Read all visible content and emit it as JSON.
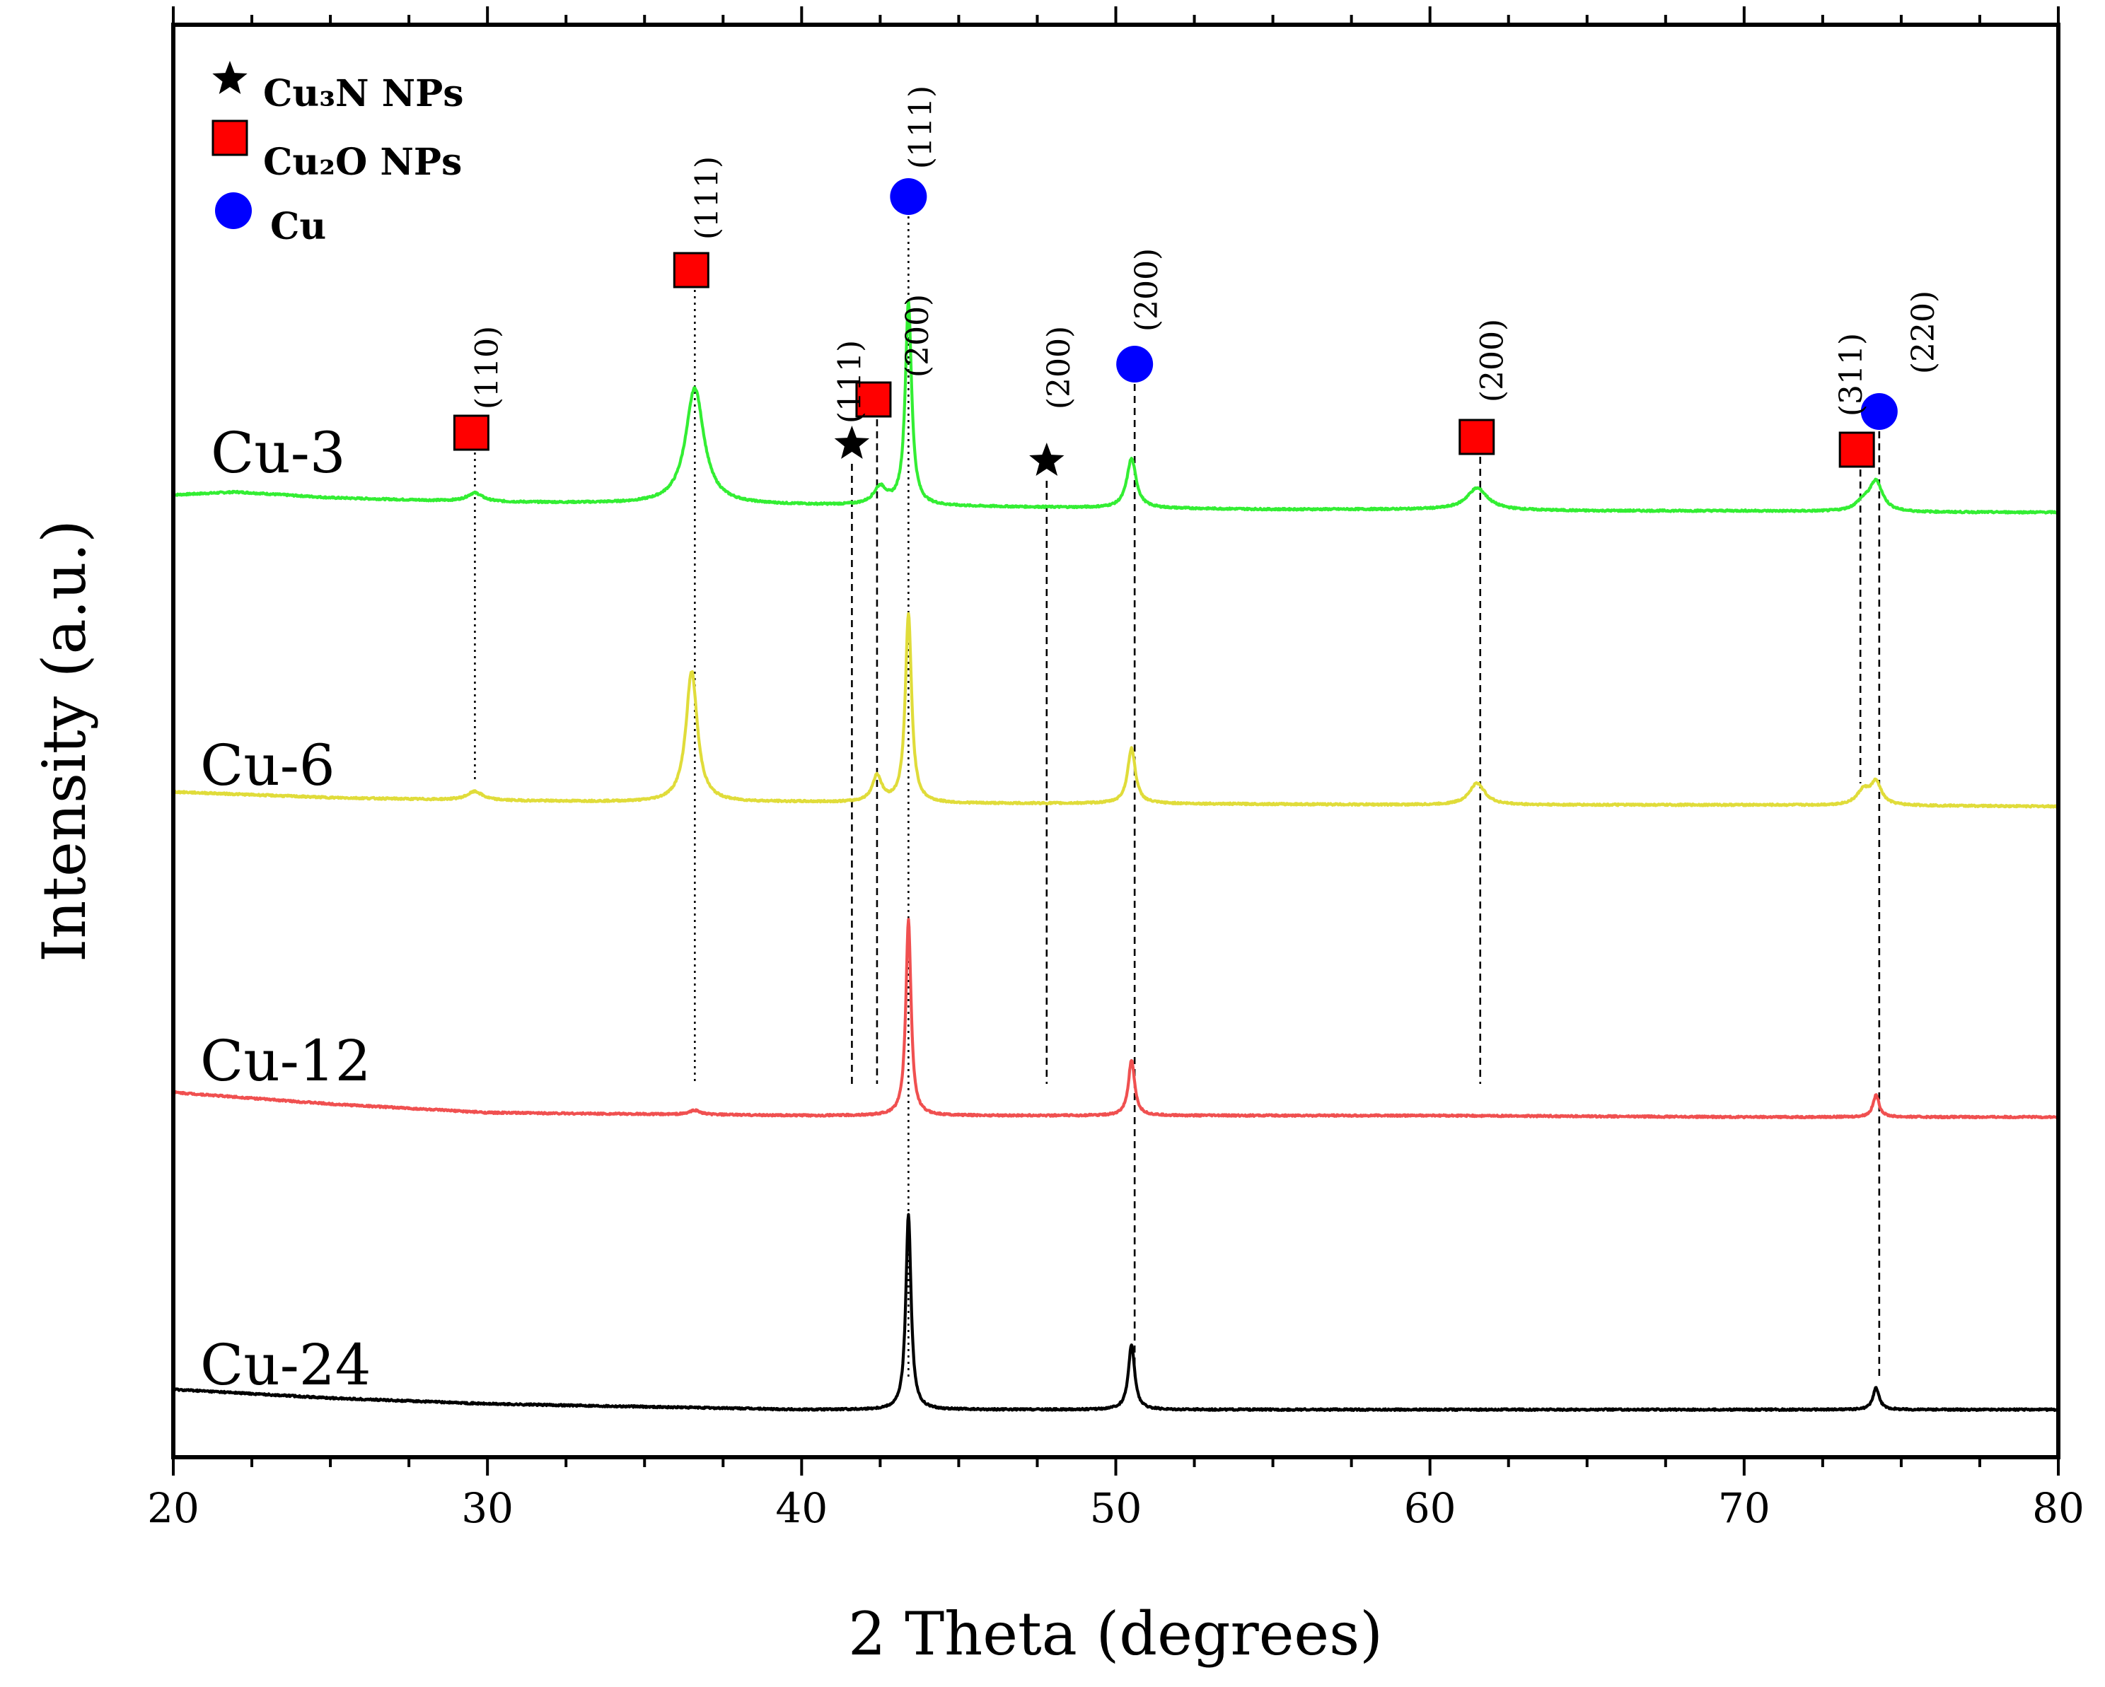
{
  "chart_data": {
    "type": "line",
    "title": "",
    "xlabel": "2 Theta (degrees)",
    "ylabel": "Intensity (a.u.)",
    "xlim": [
      20,
      80
    ],
    "xticks": [
      20,
      30,
      40,
      50,
      60,
      70,
      80
    ],
    "grid": false,
    "legend": {
      "placement": "top-left",
      "entries": [
        {
          "marker": "star",
          "label": "Cu₃N NPs",
          "color": "#000000"
        },
        {
          "marker": "square",
          "label": "Cu₂O NPs",
          "color": "#ff0000"
        },
        {
          "marker": "circle",
          "label": "Cu",
          "color": "#0000ff"
        }
      ]
    },
    "series": [
      {
        "name": "Cu-3",
        "color": "#33ee33",
        "baseline": [
          [
            20,
            1.0
          ],
          [
            22,
            1.02
          ],
          [
            25,
            0.98
          ],
          [
            30,
            0.95
          ],
          [
            35,
            0.94
          ],
          [
            40,
            0.93
          ],
          [
            45,
            0.92
          ],
          [
            50,
            0.91
          ],
          [
            55,
            0.9
          ],
          [
            60,
            0.9
          ],
          [
            65,
            0.89
          ],
          [
            70,
            0.89
          ],
          [
            75,
            0.88
          ],
          [
            80,
            0.88
          ]
        ],
        "peaks": [
          {
            "x": 29.6,
            "h": 0.06,
            "w": 0.3
          },
          {
            "x": 36.6,
            "h": 0.8,
            "w": 0.35
          },
          {
            "x": 42.5,
            "h": 0.12,
            "w": 0.25
          },
          {
            "x": 43.4,
            "h": 1.4,
            "w": 0.12
          },
          {
            "x": 50.5,
            "h": 0.34,
            "w": 0.18
          },
          {
            "x": 61.5,
            "h": 0.15,
            "w": 0.4
          },
          {
            "x": 73.8,
            "h": 0.06,
            "w": 0.3
          },
          {
            "x": 74.2,
            "h": 0.2,
            "w": 0.25
          }
        ]
      },
      {
        "name": "Cu-6",
        "color": "#e0dc3a",
        "baseline": [
          [
            20,
            1.0
          ],
          [
            25,
            0.96
          ],
          [
            30,
            0.94
          ],
          [
            35,
            0.93
          ],
          [
            40,
            0.93
          ],
          [
            45,
            0.92
          ],
          [
            50,
            0.92
          ],
          [
            60,
            0.91
          ],
          [
            70,
            0.91
          ],
          [
            80,
            0.9
          ]
        ],
        "peaks": [
          {
            "x": 29.6,
            "h": 0.06,
            "w": 0.3
          },
          {
            "x": 36.5,
            "h": 0.9,
            "w": 0.22
          },
          {
            "x": 42.4,
            "h": 0.18,
            "w": 0.18
          },
          {
            "x": 43.4,
            "h": 1.3,
            "w": 0.12
          },
          {
            "x": 50.5,
            "h": 0.38,
            "w": 0.15
          },
          {
            "x": 61.5,
            "h": 0.15,
            "w": 0.3
          },
          {
            "x": 73.8,
            "h": 0.1,
            "w": 0.25
          },
          {
            "x": 74.2,
            "h": 0.15,
            "w": 0.2
          }
        ]
      },
      {
        "name": "Cu-12",
        "color": "#f05050",
        "baseline": [
          [
            20,
            1.0
          ],
          [
            25,
            0.92
          ],
          [
            30,
            0.86
          ],
          [
            35,
            0.85
          ],
          [
            40,
            0.84
          ],
          [
            45,
            0.84
          ],
          [
            50,
            0.84
          ],
          [
            60,
            0.84
          ],
          [
            70,
            0.83
          ],
          [
            80,
            0.83
          ]
        ],
        "peaks": [
          {
            "x": 36.6,
            "h": 0.03,
            "w": 0.2
          },
          {
            "x": 43.4,
            "h": 1.35,
            "w": 0.1
          },
          {
            "x": 50.5,
            "h": 0.38,
            "w": 0.12
          },
          {
            "x": 74.2,
            "h": 0.15,
            "w": 0.12
          }
        ]
      },
      {
        "name": "Cu-24",
        "color": "#000000",
        "baseline": [
          [
            20,
            1.0
          ],
          [
            25,
            0.94
          ],
          [
            30,
            0.9
          ],
          [
            35,
            0.88
          ],
          [
            40,
            0.86
          ],
          [
            45,
            0.86
          ],
          [
            50,
            0.86
          ],
          [
            60,
            0.86
          ],
          [
            70,
            0.86
          ],
          [
            80,
            0.86
          ]
        ],
        "peaks": [
          {
            "x": 43.4,
            "h": 1.35,
            "w": 0.1
          },
          {
            "x": 50.5,
            "h": 0.45,
            "w": 0.12
          },
          {
            "x": 74.2,
            "h": 0.15,
            "w": 0.12
          }
        ]
      }
    ],
    "annotations": [
      {
        "x": 29.6,
        "phase": "Cu2O",
        "marker": "square",
        "hkl": "(110)",
        "guide": "dotted",
        "to": "Cu-6"
      },
      {
        "x": 36.6,
        "phase": "Cu2O",
        "marker": "square",
        "hkl": "(111)",
        "guide": "dotted",
        "to": "Cu-12"
      },
      {
        "x": 41.6,
        "phase": "Cu3N",
        "marker": "star",
        "hkl": "(111)",
        "guide": "dashed",
        "to": "Cu-12"
      },
      {
        "x": 42.4,
        "phase": "Cu2O",
        "marker": "square",
        "hkl": "(200)",
        "guide": "dashed",
        "to": "Cu-12"
      },
      {
        "x": 43.4,
        "phase": "Cu",
        "marker": "circle",
        "hkl": "(111)",
        "guide": "dotted",
        "to": "Cu-24"
      },
      {
        "x": 47.8,
        "phase": "Cu3N",
        "marker": "star",
        "hkl": "(200)",
        "guide": "dashed",
        "to": "Cu-12"
      },
      {
        "x": 50.6,
        "phase": "Cu",
        "marker": "circle",
        "hkl": "(200)",
        "guide": "dashed",
        "to": "Cu-24"
      },
      {
        "x": 61.6,
        "phase": "Cu2O",
        "marker": "square",
        "hkl": "(200)",
        "guide": "dashed",
        "to": "Cu-12"
      },
      {
        "x": 73.7,
        "phase": "Cu2O",
        "marker": "square",
        "hkl": "(311)",
        "guide": "dashed",
        "to": "Cu-6"
      },
      {
        "x": 74.3,
        "phase": "Cu",
        "marker": "circle",
        "hkl": "(220)",
        "guide": "dashed",
        "to": "Cu-24"
      }
    ]
  }
}
